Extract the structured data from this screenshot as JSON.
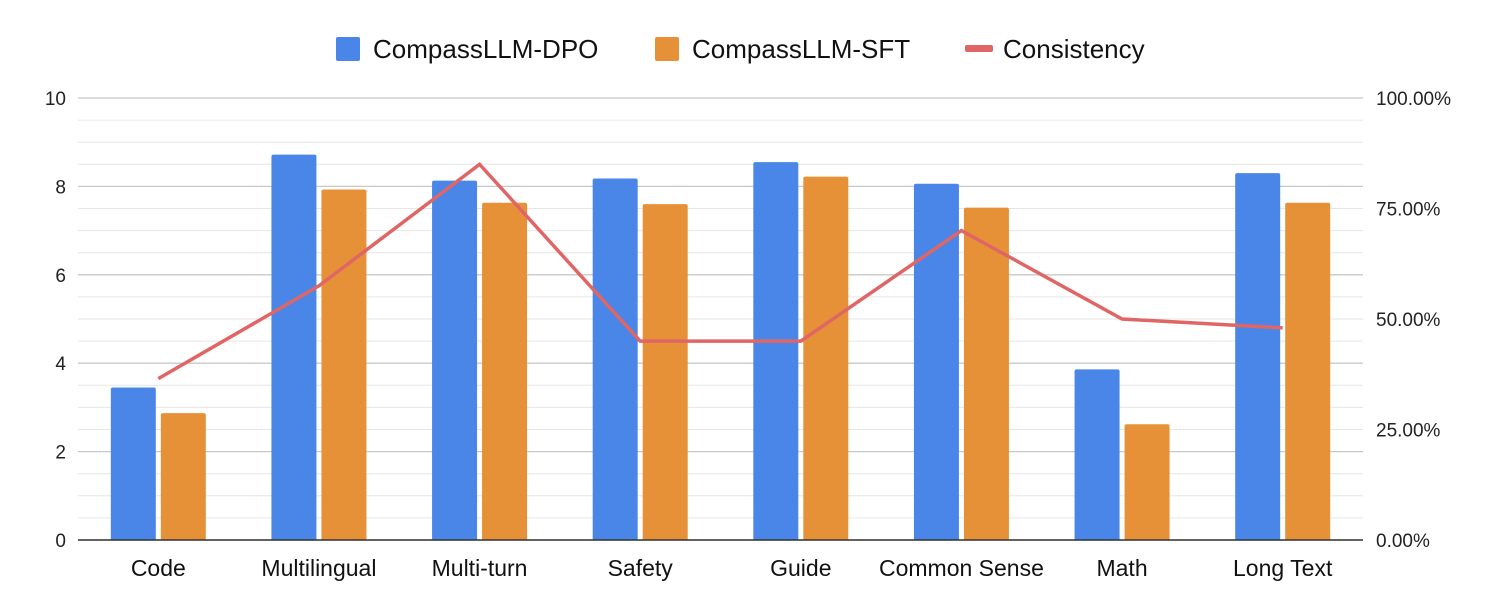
{
  "chart_data": {
    "type": "bar",
    "categories": [
      "Code",
      "Multilingual",
      "Multi-turn",
      "Safety",
      "Guide",
      "Common Sense",
      "Math",
      "Long Text"
    ],
    "series": [
      {
        "name": "CompassLLM-DPO",
        "kind": "bar",
        "axis": "left",
        "color": "#4a86e8",
        "values": [
          3.45,
          8.72,
          8.13,
          8.18,
          8.55,
          8.06,
          3.86,
          8.3
        ]
      },
      {
        "name": "CompassLLM-SFT",
        "kind": "bar",
        "axis": "left",
        "color": "#e69138",
        "values": [
          2.87,
          7.93,
          7.63,
          7.6,
          8.22,
          7.52,
          2.62,
          7.63
        ]
      },
      {
        "name": "Consistency",
        "kind": "line",
        "axis": "right",
        "color": "#e06666",
        "values": [
          36.5,
          57.5,
          85.0,
          45.0,
          45.0,
          70.0,
          50.0,
          48.0
        ]
      }
    ],
    "left_axis": {
      "min": 0,
      "max": 10,
      "ticks": [
        "0",
        "2",
        "4",
        "6",
        "8",
        "10"
      ]
    },
    "right_axis": {
      "min": 0,
      "max": 100,
      "ticks": [
        "0.00%",
        "25.00%",
        "50.00%",
        "75.00%",
        "100.00%"
      ]
    },
    "grid": true,
    "legend_position": "top-center"
  }
}
